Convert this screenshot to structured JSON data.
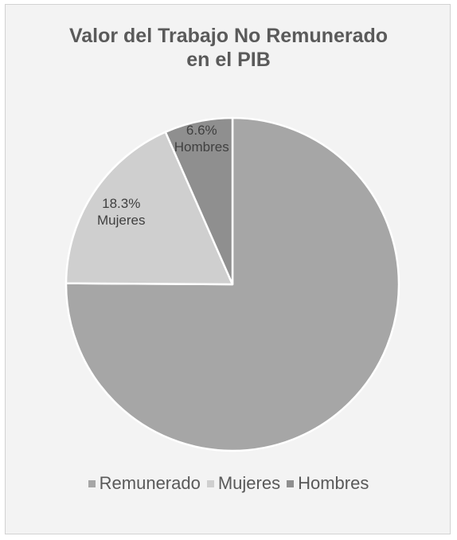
{
  "chart_data": {
    "type": "pie",
    "title": "Valor del Trabajo No Remunerado en el PIB",
    "title_lines": [
      "Valor del Trabajo No Remunerado",
      "en el PIB"
    ],
    "categories": [
      "Remunerado",
      "Mujeres",
      "Hombres"
    ],
    "values": [
      75.1,
      18.3,
      6.6
    ],
    "data_labels": [
      {
        "value": "",
        "category": ""
      },
      {
        "value": "18.3%",
        "category": "Mujeres"
      },
      {
        "value": "6.6%",
        "category": "Hombres"
      }
    ],
    "colors": [
      "#a6a6a6",
      "#cfcfcf",
      "#8f8f8f"
    ],
    "slice_border_color": "#ffffff",
    "legend": [
      "Remunerado",
      "Mujeres",
      "Hombres"
    ],
    "legend_position": "bottom",
    "start_angle_deg": 0,
    "direction": "clockwise"
  }
}
